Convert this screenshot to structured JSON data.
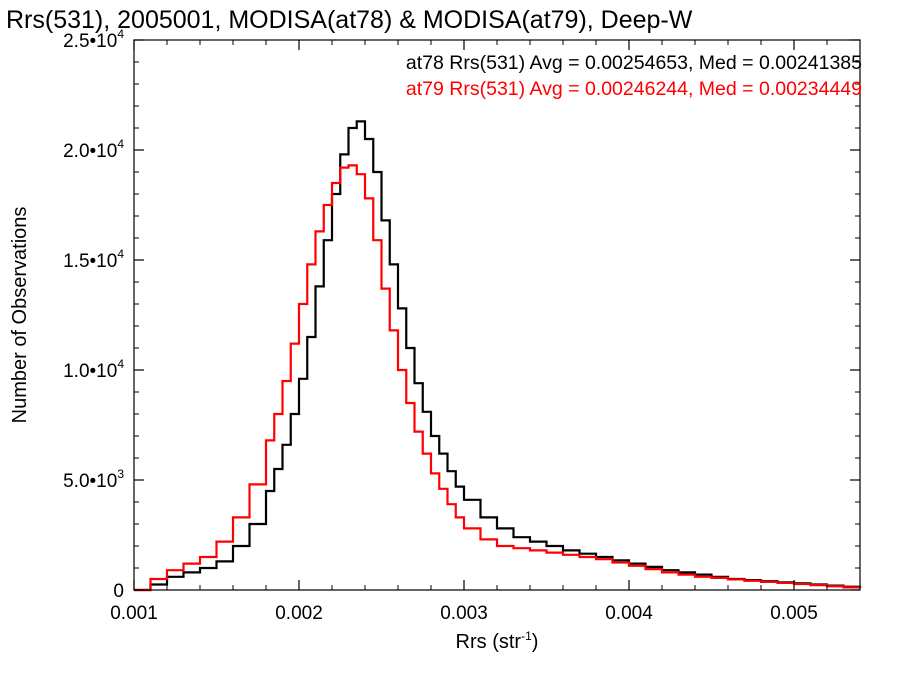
{
  "chart_data": {
    "type": "line",
    "style": "step-histogram",
    "title": "Rrs(531), 2005001, MODISA(at78) & MODISA(at79), Deep-W",
    "xlabel": {
      "base": "Rrs (str",
      "sup": "-1",
      "close": ")"
    },
    "ylabel": "Number of Observations",
    "xlim": [
      0.001,
      0.0054
    ],
    "ylim": [
      0,
      25000
    ],
    "x_ticks": [
      {
        "value": 0.001,
        "label": "0.001"
      },
      {
        "value": 0.002,
        "label": "0.002"
      },
      {
        "value": 0.003,
        "label": "0.003"
      },
      {
        "value": 0.004,
        "label": "0.004"
      },
      {
        "value": 0.005,
        "label": "0.005"
      }
    ],
    "y_ticks": [
      {
        "value": 0,
        "mant": "0",
        "exp": ""
      },
      {
        "value": 5000,
        "mant": "5.0•10",
        "exp": "3"
      },
      {
        "value": 10000,
        "mant": "1.0•10",
        "exp": "4"
      },
      {
        "value": 15000,
        "mant": "1.5•10",
        "exp": "4"
      },
      {
        "value": 20000,
        "mant": "2.0•10",
        "exp": "4"
      },
      {
        "value": 25000,
        "mant": "2.5•10",
        "exp": "4"
      }
    ],
    "legend_position": "top-right",
    "series": [
      {
        "name": "at78",
        "legend": "at78 Rrs(531) Avg = 0.00254653, Med = 0.00241385",
        "color": "#000000",
        "x": [
          0.001,
          0.0011,
          0.0012,
          0.0013,
          0.0014,
          0.0015,
          0.0016,
          0.0017,
          0.0018,
          0.00185,
          0.0019,
          0.00195,
          0.002,
          0.00205,
          0.0021,
          0.00215,
          0.0022,
          0.00225,
          0.0023,
          0.00235,
          0.0024,
          0.00245,
          0.0025,
          0.00255,
          0.0026,
          0.00265,
          0.0027,
          0.00275,
          0.0028,
          0.00285,
          0.0029,
          0.00295,
          0.003,
          0.0031,
          0.0032,
          0.0033,
          0.0034,
          0.0035,
          0.0036,
          0.0037,
          0.0038,
          0.0039,
          0.004,
          0.0041,
          0.0042,
          0.0043,
          0.0044,
          0.0045,
          0.0046,
          0.0047,
          0.0048,
          0.0049,
          0.005,
          0.0051,
          0.0052,
          0.0053,
          0.0054
        ],
        "y": [
          0,
          250,
          600,
          800,
          1000,
          1300,
          2000,
          3000,
          4500,
          5500,
          6600,
          8000,
          9600,
          11500,
          13800,
          15900,
          18000,
          19800,
          21000,
          21300,
          20500,
          19000,
          16800,
          14800,
          12800,
          11000,
          9400,
          8100,
          7000,
          6200,
          5400,
          4700,
          4100,
          3300,
          2800,
          2400,
          2200,
          2000,
          1800,
          1650,
          1500,
          1350,
          1200,
          1050,
          900,
          800,
          700,
          600,
          500,
          450,
          400,
          350,
          300,
          250,
          200,
          150,
          100
        ]
      },
      {
        "name": "at79",
        "legend": "at79 Rrs(531) Avg = 0.00246244, Med = 0.00234449",
        "color": "#ff0000",
        "x": [
          0.001,
          0.0011,
          0.0012,
          0.0013,
          0.0014,
          0.0015,
          0.0016,
          0.0017,
          0.0018,
          0.00185,
          0.0019,
          0.00195,
          0.002,
          0.00205,
          0.0021,
          0.00215,
          0.0022,
          0.00225,
          0.0023,
          0.00235,
          0.0024,
          0.00245,
          0.0025,
          0.00255,
          0.0026,
          0.00265,
          0.0027,
          0.00275,
          0.0028,
          0.00285,
          0.0029,
          0.00295,
          0.003,
          0.0031,
          0.0032,
          0.0033,
          0.0034,
          0.0035,
          0.0036,
          0.0037,
          0.0038,
          0.0039,
          0.004,
          0.0041,
          0.0042,
          0.0043,
          0.0044,
          0.0045,
          0.0046,
          0.0047,
          0.0048,
          0.0049,
          0.005,
          0.0051,
          0.0052,
          0.0053,
          0.0054
        ],
        "y": [
          0,
          500,
          900,
          1200,
          1500,
          2200,
          3300,
          4800,
          6800,
          8000,
          9500,
          11200,
          13000,
          14800,
          16300,
          17500,
          18500,
          19200,
          19300,
          18900,
          17800,
          15900,
          13700,
          11800,
          10000,
          8500,
          7200,
          6200,
          5300,
          4600,
          3900,
          3300,
          2800,
          2300,
          2000,
          1900,
          1800,
          1700,
          1600,
          1500,
          1400,
          1250,
          1100,
          950,
          800,
          700,
          600,
          550,
          480,
          420,
          370,
          320,
          270,
          220,
          170,
          120,
          80
        ]
      }
    ]
  }
}
